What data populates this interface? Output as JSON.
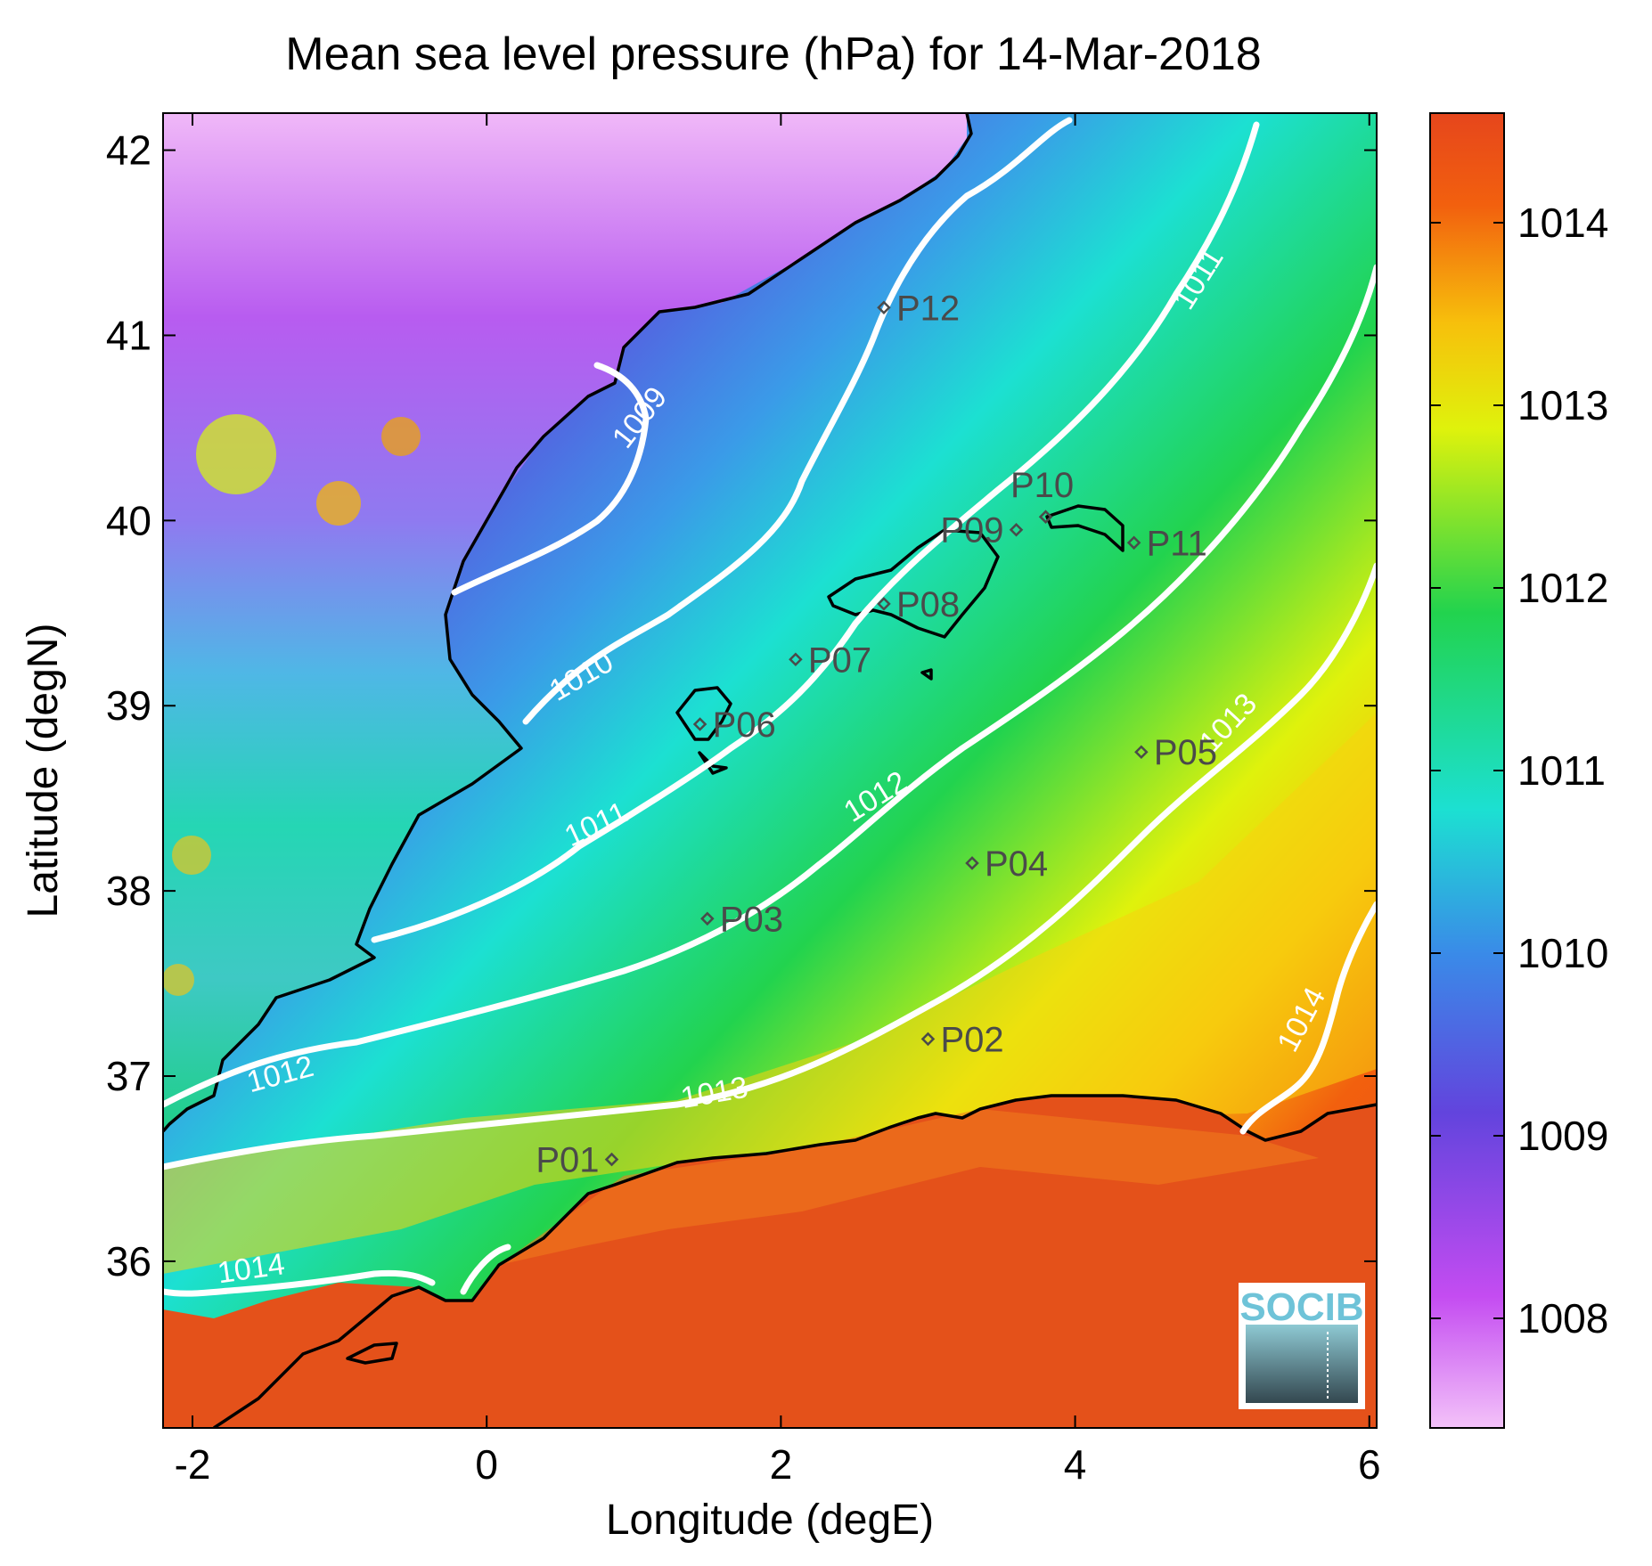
{
  "title": "Mean sea level pressure (hPa) for 14-Mar-2018",
  "x_axis": {
    "label": "Longitude (degE)",
    "ticks": [
      "-2",
      "0",
      "2",
      "4",
      "6"
    ],
    "range": [
      -2.2,
      6.05
    ]
  },
  "y_axis": {
    "label": "Latitude (degN)",
    "ticks": [
      "36",
      "37",
      "38",
      "39",
      "40",
      "41",
      "42"
    ],
    "range": [
      35.1,
      42.2
    ]
  },
  "colorbar": {
    "ticks": [
      "1008",
      "1009",
      "1010",
      "1011",
      "1012",
      "1013",
      "1014"
    ],
    "range": [
      1007.4,
      1014.6
    ]
  },
  "contour_labels": [
    {
      "text": "1009",
      "lon": 1.05,
      "lat": 40.55,
      "angle": -52
    },
    {
      "text": "1010",
      "lon": 0.65,
      "lat": 39.15,
      "angle": -30
    },
    {
      "text": "1011",
      "lon": 0.75,
      "lat": 38.35,
      "angle": -25
    },
    {
      "text": "1011",
      "lon": 4.85,
      "lat": 41.3,
      "angle": -58
    },
    {
      "text": "1012",
      "lon": -1.4,
      "lat": 37.0,
      "angle": -15
    },
    {
      "text": "1012",
      "lon": 2.65,
      "lat": 38.5,
      "angle": -32
    },
    {
      "text": "1013",
      "lon": 1.55,
      "lat": 36.9,
      "angle": -10
    },
    {
      "text": "1013",
      "lon": 5.05,
      "lat": 38.9,
      "angle": -47
    },
    {
      "text": "1014",
      "lon": -1.6,
      "lat": 35.95,
      "angle": -8
    },
    {
      "text": "1014",
      "lon": 5.55,
      "lat": 37.3,
      "angle": -62
    }
  ],
  "stations": [
    {
      "name": "P01",
      "lon": 0.85,
      "lat": 36.55,
      "side": "left"
    },
    {
      "name": "P02",
      "lon": 3.0,
      "lat": 37.2,
      "side": "right"
    },
    {
      "name": "P03",
      "lon": 1.5,
      "lat": 37.85,
      "side": "right"
    },
    {
      "name": "P04",
      "lon": 3.3,
      "lat": 38.15,
      "side": "right"
    },
    {
      "name": "P05",
      "lon": 4.45,
      "lat": 38.75,
      "side": "right"
    },
    {
      "name": "P06",
      "lon": 1.45,
      "lat": 38.9,
      "side": "right"
    },
    {
      "name": "P07",
      "lon": 2.1,
      "lat": 39.25,
      "side": "right"
    },
    {
      "name": "P08",
      "lon": 2.7,
      "lat": 39.55,
      "side": "right"
    },
    {
      "name": "P09",
      "lon": 3.6,
      "lat": 39.95,
      "side": "left"
    },
    {
      "name": "P10",
      "lon": 3.8,
      "lat": 40.02,
      "side": "above"
    },
    {
      "name": "P11",
      "lon": 4.4,
      "lat": 39.88,
      "side": "right"
    },
    {
      "name": "P12",
      "lon": 2.7,
      "lat": 41.15,
      "side": "right"
    }
  ],
  "logo": {
    "text": "SOCIB"
  },
  "colors": {
    "colormap": [
      "#f3c2f9",
      "#c44cf1",
      "#6244dd",
      "#3a8ae8",
      "#1ce0d2",
      "#22d34e",
      "#dff20c",
      "#f7c00c",
      "#f2600e",
      "#e6461c"
    ],
    "contour": "#ffffff",
    "coastline": "#000000"
  }
}
